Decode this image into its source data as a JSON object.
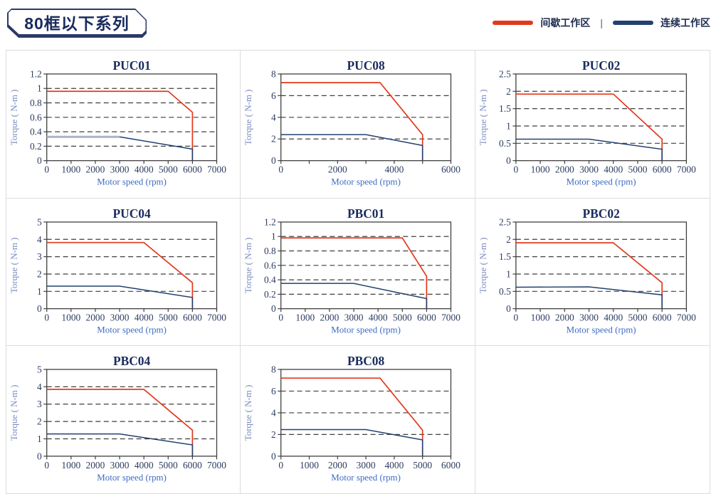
{
  "header": {
    "series_title": "80框以下系列",
    "legend_separator": "|",
    "legend": [
      {
        "label": "间歇工作区",
        "color": "#e2391d"
      },
      {
        "label": "连续工作区",
        "color": "#23406f"
      }
    ],
    "legend_position": "top-right"
  },
  "colors": {
    "red_line": "#e2391d",
    "navy_line": "#23406f",
    "title_text": "#1a2b5e",
    "tick_label": "#2c3c60",
    "x_axis_label": "#3e6cc2",
    "y_axis_label": "#7b8cc0",
    "grid_line": "#3f3f3f",
    "cell_border": "#dcdcdc",
    "puc01_highlight": "#a9b3ca"
  },
  "chart_data": [
    {
      "type": "line",
      "title": "PUC01",
      "xlabel": "Motor speed (rpm)",
      "ylabel": "Torque ( N-m )",
      "xlim": [
        0,
        7000
      ],
      "ylim": [
        0,
        1.2
      ],
      "x_tick_labels": [
        0,
        1000,
        2000,
        3000,
        4000,
        5000,
        6000,
        7000
      ],
      "x_tick_marks": [
        0,
        1000,
        2000,
        3000,
        4000,
        5000,
        6000,
        7000
      ],
      "y_ticks": [
        0,
        0.2,
        0.4,
        0.6,
        0.8,
        1,
        1.2
      ],
      "grid": "dashed-horizontal",
      "series": [
        {
          "name": "间歇工作区",
          "color": "red",
          "points": [
            [
              0,
              0.96
            ],
            [
              5000,
              0.96
            ],
            [
              6000,
              0.67
            ],
            [
              6000,
              0
            ]
          ]
        },
        {
          "name": "连续工作区",
          "color": "navy",
          "points": [
            [
              0,
              0.33
            ],
            [
              3000,
              0.33
            ],
            [
              6000,
              0.16
            ],
            [
              6000,
              0
            ]
          ]
        }
      ],
      "highlight_segment": {
        "points": [
          [
            0,
            0.33
          ],
          [
            3000,
            0.33
          ]
        ],
        "color": "#a9b3ca"
      }
    },
    {
      "type": "line",
      "title": "PUC08",
      "xlabel": "Motor speed (rpm)",
      "ylabel": "Torque ( N-m )",
      "xlim": [
        0,
        6000
      ],
      "ylim": [
        0,
        8
      ],
      "x_tick_labels": [
        0,
        2000,
        4000,
        6000
      ],
      "x_tick_marks": [
        0,
        1000,
        2000,
        3000,
        4000,
        5000,
        6000
      ],
      "y_ticks": [
        0,
        2,
        4,
        6,
        8
      ],
      "grid": "dashed-horizontal",
      "series": [
        {
          "name": "间歇工作区",
          "color": "red",
          "points": [
            [
              0,
              7.2
            ],
            [
              3500,
              7.2
            ],
            [
              5000,
              2.4
            ],
            [
              5000,
              0
            ]
          ]
        },
        {
          "name": "连续工作区",
          "color": "navy",
          "points": [
            [
              0,
              2.4
            ],
            [
              3000,
              2.4
            ],
            [
              5000,
              1.4
            ],
            [
              5000,
              0
            ]
          ]
        }
      ]
    },
    {
      "type": "line",
      "title": "PUC02",
      "xlabel": "Motor speed (rpm)",
      "ylabel": "Torque ( N-m )",
      "xlim": [
        0,
        7000
      ],
      "ylim": [
        0,
        2.5
      ],
      "x_tick_labels": [
        0,
        1000,
        2000,
        3000,
        4000,
        5000,
        6000,
        7000
      ],
      "x_tick_marks": [
        0,
        1000,
        2000,
        3000,
        4000,
        5000,
        6000,
        7000
      ],
      "y_ticks": [
        0,
        0.5,
        1,
        1.5,
        2,
        2.5
      ],
      "grid": "dashed-horizontal",
      "series": [
        {
          "name": "间歇工作区",
          "color": "red",
          "points": [
            [
              0,
              1.92
            ],
            [
              4000,
              1.92
            ],
            [
              6000,
              0.62
            ],
            [
              6000,
              0
            ]
          ]
        },
        {
          "name": "连续工作区",
          "color": "navy",
          "points": [
            [
              0,
              0.62
            ],
            [
              3000,
              0.62
            ],
            [
              6000,
              0.33
            ],
            [
              6000,
              0
            ]
          ]
        }
      ]
    },
    {
      "type": "line",
      "title": "PUC04",
      "xlabel": "Motor speed (rpm)",
      "ylabel": "Torque ( N-m )",
      "xlim": [
        0,
        7000
      ],
      "ylim": [
        0,
        5
      ],
      "x_tick_labels": [
        0,
        1000,
        2000,
        3000,
        4000,
        5000,
        6000,
        7000
      ],
      "x_tick_marks": [
        0,
        1000,
        2000,
        3000,
        4000,
        5000,
        6000,
        7000
      ],
      "y_ticks": [
        0,
        1,
        2,
        3,
        4,
        5
      ],
      "grid": "dashed-horizontal",
      "series": [
        {
          "name": "间歇工作区",
          "color": "red",
          "points": [
            [
              0,
              3.82
            ],
            [
              4000,
              3.82
            ],
            [
              6000,
              1.5
            ],
            [
              6000,
              0
            ]
          ]
        },
        {
          "name": "连续工作区",
          "color": "navy",
          "points": [
            [
              0,
              1.3
            ],
            [
              3000,
              1.3
            ],
            [
              6000,
              0.65
            ],
            [
              6000,
              0
            ]
          ]
        }
      ]
    },
    {
      "type": "line",
      "title": "PBC01",
      "xlabel": "Motor speed (rpm)",
      "ylabel": "Torque ( N-m )",
      "xlim": [
        0,
        7000
      ],
      "ylim": [
        0,
        1.2
      ],
      "x_tick_labels": [
        0,
        1000,
        2000,
        3000,
        4000,
        5000,
        6000,
        7000
      ],
      "x_tick_marks": [
        0,
        1000,
        2000,
        3000,
        4000,
        5000,
        6000,
        7000
      ],
      "y_ticks": [
        0,
        0.2,
        0.4,
        0.6,
        0.8,
        1,
        1.2
      ],
      "grid": "dashed-horizontal",
      "series": [
        {
          "name": "间歇工作区",
          "color": "red",
          "points": [
            [
              0,
              0.98
            ],
            [
              5000,
              0.98
            ],
            [
              6000,
              0.45
            ],
            [
              6000,
              0
            ]
          ]
        },
        {
          "name": "连续工作区",
          "color": "navy",
          "points": [
            [
              0,
              0.35
            ],
            [
              3000,
              0.35
            ],
            [
              6000,
              0.14
            ],
            [
              6000,
              0
            ]
          ]
        }
      ]
    },
    {
      "type": "line",
      "title": "PBC02",
      "xlabel": "Motor speed (rpm)",
      "ylabel": "Torque ( N-m )",
      "xlim": [
        0,
        7000
      ],
      "ylim": [
        0,
        2.5
      ],
      "x_tick_labels": [
        0,
        1000,
        2000,
        3000,
        4000,
        5000,
        6000,
        7000
      ],
      "x_tick_marks": [
        0,
        1000,
        2000,
        3000,
        4000,
        5000,
        6000,
        7000
      ],
      "y_ticks": [
        0,
        0.5,
        1,
        1.5,
        2,
        2.5
      ],
      "grid": "dashed-horizontal",
      "series": [
        {
          "name": "间歇工作区",
          "color": "red",
          "points": [
            [
              0,
              1.9
            ],
            [
              4000,
              1.9
            ],
            [
              6000,
              0.75
            ],
            [
              6000,
              0
            ]
          ]
        },
        {
          "name": "连续工作区",
          "color": "navy",
          "points": [
            [
              0,
              0.62
            ],
            [
              3000,
              0.63
            ],
            [
              6000,
              0.4
            ],
            [
              6000,
              0
            ]
          ]
        }
      ]
    },
    {
      "type": "line",
      "title": "PBC04",
      "xlabel": "Motor speed (rpm)",
      "ylabel": "Torque ( N-m )",
      "xlim": [
        0,
        7000
      ],
      "ylim": [
        0,
        5
      ],
      "x_tick_labels": [
        0,
        1000,
        2000,
        3000,
        4000,
        5000,
        6000,
        7000
      ],
      "x_tick_marks": [
        0,
        1000,
        2000,
        3000,
        4000,
        5000,
        6000,
        7000
      ],
      "y_ticks": [
        0,
        1,
        2,
        3,
        4,
        5
      ],
      "grid": "dashed-horizontal",
      "series": [
        {
          "name": "间歇工作区",
          "color": "red",
          "points": [
            [
              0,
              3.85
            ],
            [
              4000,
              3.85
            ],
            [
              6000,
              1.5
            ],
            [
              6000,
              0
            ]
          ]
        },
        {
          "name": "连续工作区",
          "color": "navy",
          "points": [
            [
              0,
              1.28
            ],
            [
              3000,
              1.28
            ],
            [
              6000,
              0.65
            ],
            [
              6000,
              0
            ]
          ]
        }
      ]
    },
    {
      "type": "line",
      "title": "PBC08",
      "xlabel": "Motor speed (rpm)",
      "ylabel": "Torque ( N-m )",
      "xlim": [
        0,
        6000
      ],
      "ylim": [
        0,
        8
      ],
      "x_tick_labels": [
        0,
        1000,
        2000,
        3000,
        4000,
        5000,
        6000
      ],
      "x_tick_marks": [
        0,
        1000,
        2000,
        3000,
        4000,
        5000,
        6000
      ],
      "y_ticks": [
        0,
        2,
        4,
        6,
        8
      ],
      "grid": "dashed-horizontal",
      "series": [
        {
          "name": "间歇工作区",
          "color": "red",
          "points": [
            [
              0,
              7.2
            ],
            [
              3500,
              7.2
            ],
            [
              5000,
              2.4
            ],
            [
              5000,
              0
            ]
          ]
        },
        {
          "name": "连续工作区",
          "color": "navy",
          "points": [
            [
              0,
              2.45
            ],
            [
              3000,
              2.45
            ],
            [
              5000,
              1.5
            ],
            [
              5000,
              0
            ]
          ]
        }
      ]
    }
  ]
}
